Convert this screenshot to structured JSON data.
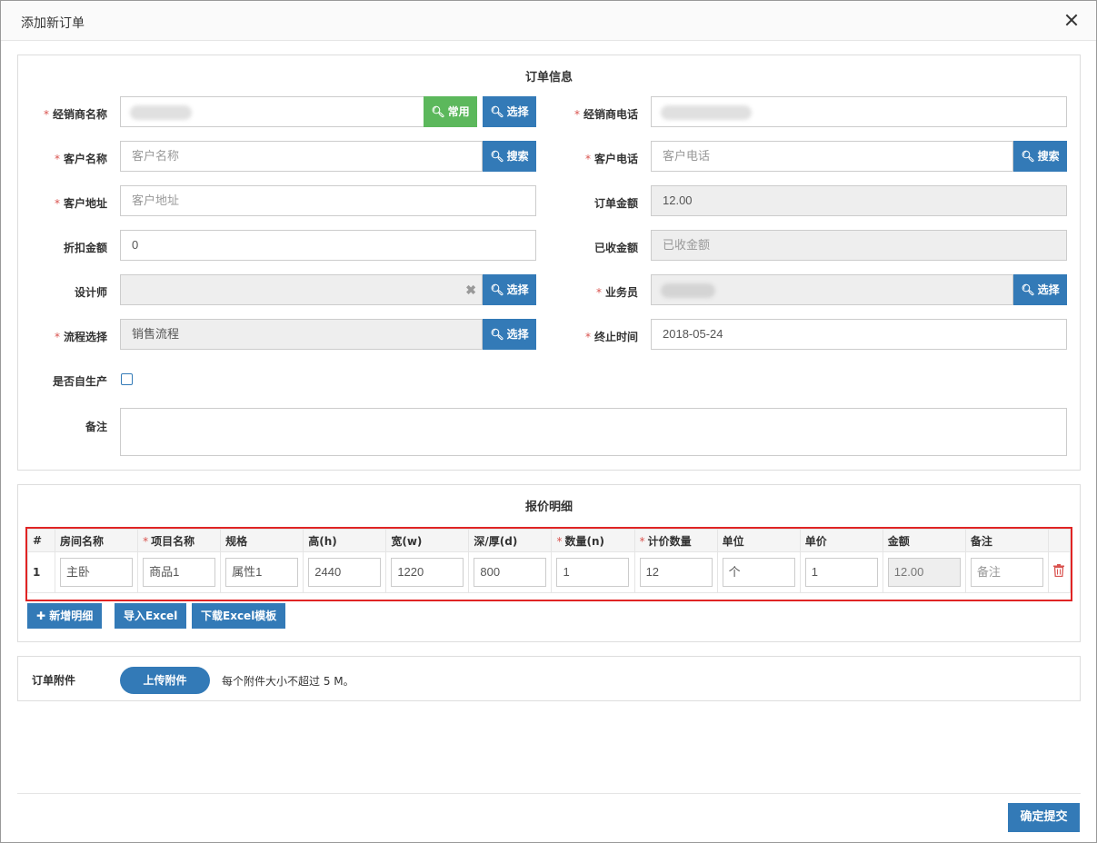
{
  "dialog": {
    "title": "添加新订单"
  },
  "order_info": {
    "title": "订单信息",
    "dealer_name_label": "经销商名称",
    "common_btn": "常用",
    "select_btn": "选择",
    "dealer_phone_label": "经销商电话",
    "customer_name_label": "客户名称",
    "customer_name_placeholder": "客户名称",
    "search_btn": "搜索",
    "customer_phone_label": "客户电话",
    "customer_phone_placeholder": "客户电话",
    "customer_address_label": "客户地址",
    "customer_address_placeholder": "客户地址",
    "order_amount_label": "订单金额",
    "order_amount_value": "12.00",
    "discount_label": "折扣金额",
    "discount_value": "0",
    "received_label": "已收金额",
    "received_placeholder": "已收金额",
    "designer_label": "设计师",
    "salesman_label": "业务员",
    "process_label": "流程选择",
    "process_value": "销售流程",
    "deadline_label": "终止时间",
    "deadline_value": "2018-05-24",
    "self_produce_label": "是否自生产",
    "remark_label": "备注"
  },
  "quote": {
    "title": "报价明细",
    "columns": [
      "#",
      "房间名称",
      "项目名称",
      "规格",
      "高(h)",
      "宽(w)",
      "深/厚(d)",
      "数量(n)",
      "计价数量",
      "单位",
      "单价",
      "金额",
      "备注"
    ],
    "rows": [
      {
        "index": "1",
        "room": "主卧",
        "item": "商品1",
        "spec": "属性1",
        "h": "2440",
        "w": "1220",
        "d": "800",
        "n": "1",
        "count": "12",
        "unit": "个",
        "price": "1",
        "amount": "12.00",
        "remark_placeholder": "备注"
      }
    ],
    "add_btn": "新增明细",
    "import_btn": "导入Excel",
    "download_btn": "下载Excel模板"
  },
  "attachment": {
    "label": "订单附件",
    "upload_btn": "上传附件",
    "hint": "每个附件大小不超过 5 M。"
  },
  "footer": {
    "submit_btn": "确定提交"
  }
}
